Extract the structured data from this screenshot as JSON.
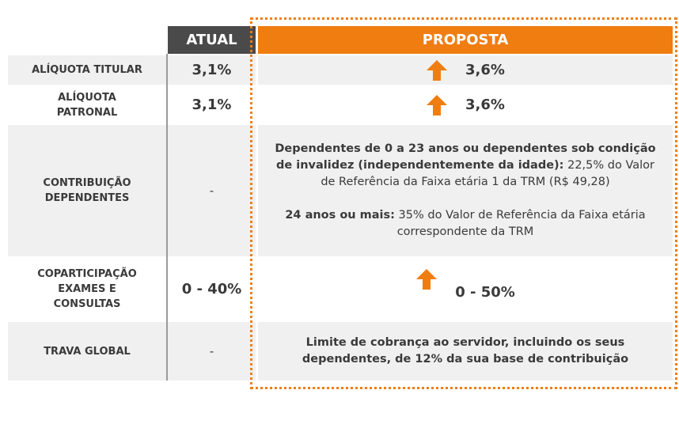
{
  "table": {
    "header": [
      "ATUAL",
      "PROPOSTA"
    ],
    "rows": [
      {
        "label": "ALÍQUOTA TITULAR",
        "atual": "3,1%",
        "proposta": "3,6%"
      },
      {
        "label": "ALÍQUOTA PATRONAL",
        "atual": "3,1%",
        "proposta": "3,6%"
      },
      {
        "label": "CONTRIBUIÇÃO DEPENDENTES",
        "atual": "-",
        "proposta": [
          {
            "strong": "Dependentes de 0 a 23 anos ou dependentes sob condição de invalidez (independentemente da idade):",
            "rest": " 22,5% do Valor de Referência da Faixa etária 1 da TRM (R$ 49,28)"
          },
          {
            "strong": "24 anos ou mais:",
            "rest": " 35% do Valor de Referência da Faixa etária correspondente da TRM"
          }
        ]
      },
      {
        "label": "COPARTICIPAÇÃO EXAMES E CONSULTAS",
        "atual": "0 - 40%",
        "proposta": "0 - 50%"
      },
      {
        "label": "TRAVA GLOBAL",
        "atual": "-",
        "proposta": "Limite de cobrança ao servidor, incluindo os seus dependentes, de 12% da sua base de contribuição"
      }
    ]
  }
}
